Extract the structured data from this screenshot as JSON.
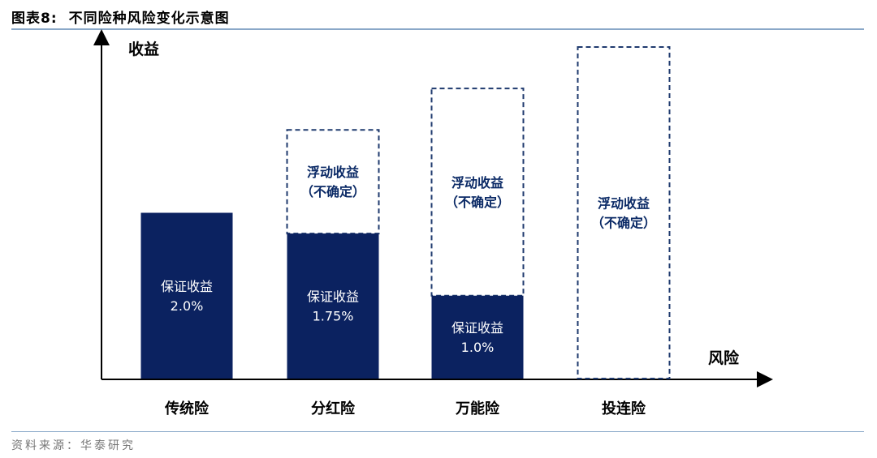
{
  "figure": {
    "number": "图表8:",
    "title": "不同险种风险变化示意图",
    "source": "资料来源：华泰研究"
  },
  "colors": {
    "bar_fill": "#0b2260",
    "dashed_border": "#1f3a6e",
    "float_text": "#0b2a66",
    "rule": "#8aa8c8"
  },
  "chart_data": {
    "type": "bar",
    "ylabel": "收益",
    "xlabel": "风险",
    "categories": [
      "传统险",
      "分红险",
      "万能险",
      "投连险"
    ],
    "guaranteed": {
      "label": "保证收益",
      "values": [
        2.0,
        1.75,
        1.0,
        0
      ],
      "value_labels": [
        "2.0%",
        "1.75%",
        "1.0%",
        ""
      ]
    },
    "floating": {
      "label_line1": "浮动收益",
      "label_line2": "（不确定）",
      "present": [
        false,
        true,
        true,
        true
      ],
      "relative_top": [
        0,
        3.0,
        3.5,
        4.0
      ]
    },
    "ylim": [
      0,
      4.0
    ],
    "grid": false
  }
}
